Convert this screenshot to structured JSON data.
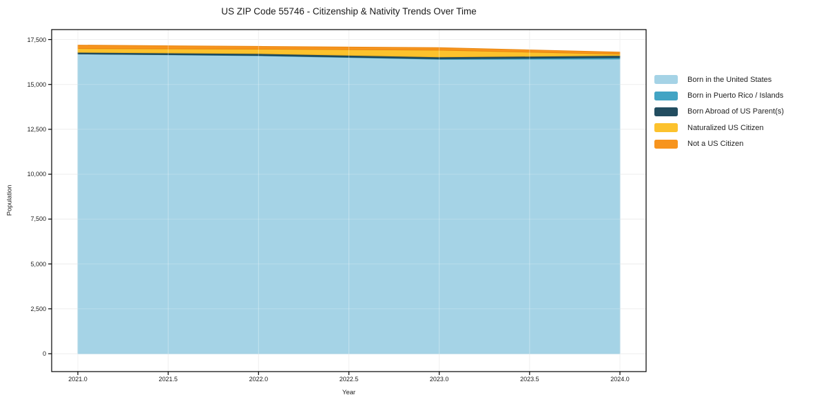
{
  "title": "US ZIP Code 55746 - Citizenship & Nativity Trends Over Time",
  "axes": {
    "x_label": "Year",
    "y_label": "Population",
    "x_ticklabels": [
      "2021.0",
      "2021.5",
      "2022.0",
      "2022.5",
      "2023.0",
      "2023.5",
      "2024.0"
    ],
    "y_ticklabels": [
      "0",
      "2,500",
      "5,000",
      "7,500",
      "10,000",
      "12,500",
      "15,000",
      "17,500"
    ]
  },
  "legend": {
    "items": [
      "Born in the United States",
      "Born in Puerto Rico / Islands",
      "Born Abroad of US Parent(s)",
      "Naturalized US Citizen",
      "Not a US Citizen"
    ],
    "position": "right-outside",
    "frame": false
  },
  "chart_data": {
    "type": "area",
    "stacked": true,
    "title": "US ZIP Code 55746 - Citizenship & Nativity Trends Over Time",
    "xlabel": "Year",
    "ylabel": "Population",
    "x": [
      2021,
      2022,
      2023,
      2024
    ],
    "x_ticks": [
      2021.0,
      2021.5,
      2022.0,
      2022.5,
      2023.0,
      2023.5,
      2024.0
    ],
    "y_ticks": [
      0,
      2500,
      5000,
      7500,
      10000,
      12500,
      15000,
      17500
    ],
    "xlim": [
      2020.86,
      2024.14
    ],
    "ylim": [
      0,
      17500
    ],
    "grid": true,
    "series": [
      {
        "name": "Born in the United States",
        "color": "#a5d3e6",
        "edge": "#8fc3d9",
        "values": [
          16700,
          16600,
          16400,
          16420
        ]
      },
      {
        "name": "Born in Puerto Rico / Islands",
        "color": "#42a4c4",
        "edge": "#3794b4",
        "values": [
          0,
          20,
          30,
          75
        ]
      },
      {
        "name": "Born Abroad of US Parent(s)",
        "color": "#224d60",
        "edge": "#1c4254",
        "values": [
          90,
          100,
          100,
          115
        ]
      },
      {
        "name": "Naturalized US Citizen",
        "color": "#fcc22d",
        "edge": "#edb31e",
        "values": [
          210,
          250,
          380,
          80
        ]
      },
      {
        "name": "Not a US Citizen",
        "color": "#f7941e",
        "edge": "#e8860f",
        "values": [
          190,
          150,
          140,
          110
        ]
      }
    ],
    "totals": [
      17190,
      17120,
      17050,
      16800
    ]
  }
}
